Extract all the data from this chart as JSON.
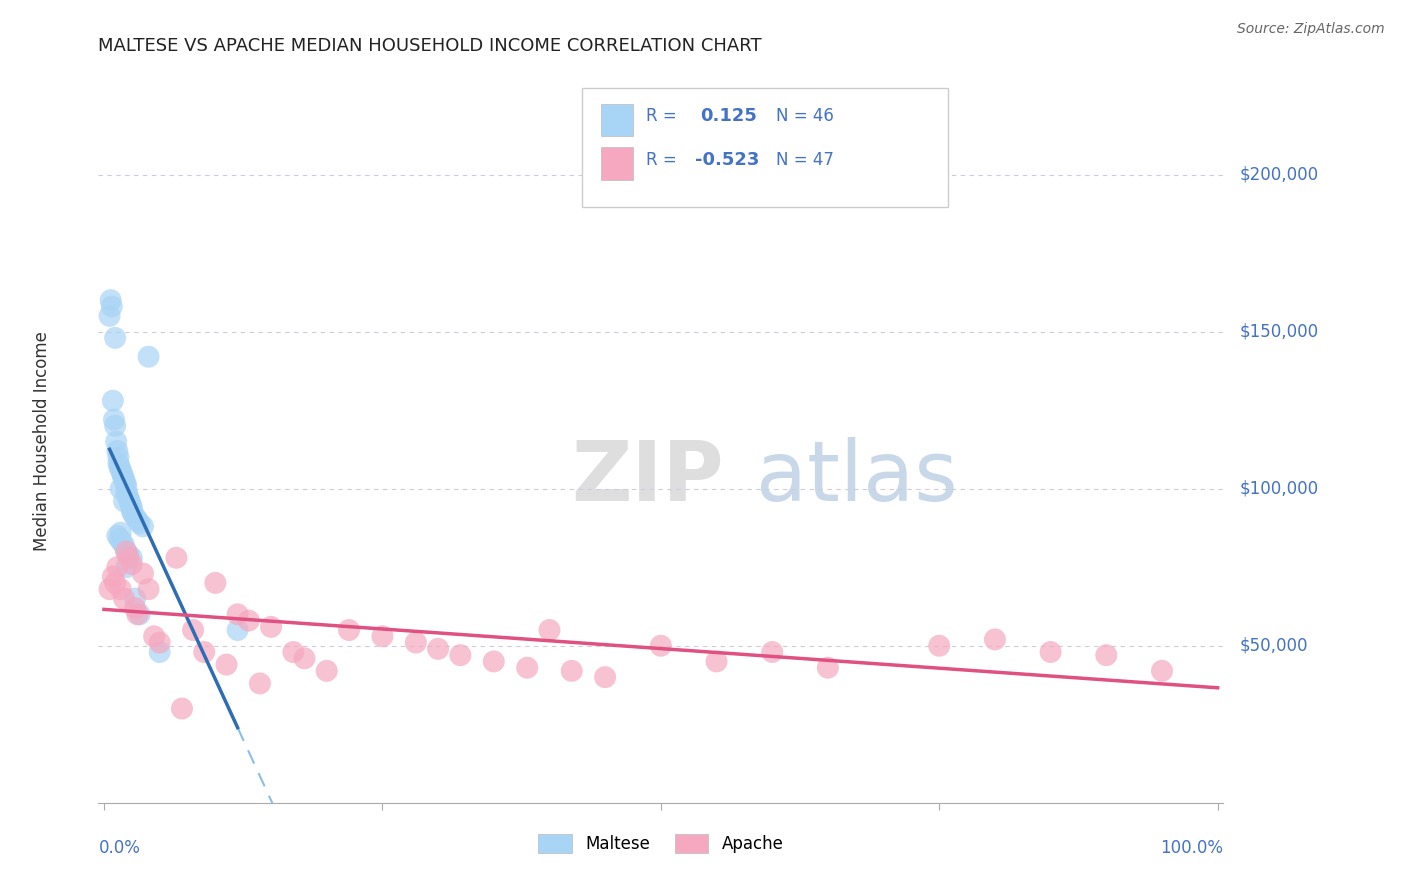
{
  "title": "MALTESE VS APACHE MEDIAN HOUSEHOLD INCOME CORRELATION CHART",
  "source": "Source: ZipAtlas.com",
  "ylabel": "Median Household Income",
  "R1": 0.125,
  "N1": 46,
  "R2": -0.523,
  "N2": 47,
  "color_blue_scatter": "#A8D4F5",
  "color_pink_scatter": "#F5A8C0",
  "color_blue_line": "#2E6DB4",
  "color_pink_line": "#E05080",
  "color_blue_dashed": "#A8D4F5",
  "color_labels": "#4472C4",
  "ytick_values": [
    50000,
    100000,
    150000,
    200000
  ],
  "ylim_min": 0,
  "ylim_max": 230000,
  "xlim_min": -0.005,
  "xlim_max": 1.005,
  "maltese_x": [
    0.005,
    0.006,
    0.007,
    0.008,
    0.009,
    0.01,
    0.01,
    0.011,
    0.012,
    0.013,
    0.013,
    0.014,
    0.015,
    0.015,
    0.016,
    0.017,
    0.018,
    0.018,
    0.019,
    0.02,
    0.02,
    0.021,
    0.022,
    0.023,
    0.024,
    0.025,
    0.025,
    0.026,
    0.028,
    0.03,
    0.032,
    0.035,
    0.04,
    0.012,
    0.014,
    0.016,
    0.018,
    0.02,
    0.022,
    0.025,
    0.028,
    0.032,
    0.12,
    0.05,
    0.015,
    0.02
  ],
  "maltese_y": [
    155000,
    160000,
    158000,
    128000,
    122000,
    120000,
    148000,
    115000,
    112000,
    110000,
    108000,
    107000,
    106000,
    100000,
    105000,
    104000,
    103000,
    96000,
    102000,
    101000,
    99000,
    98000,
    97000,
    96000,
    95000,
    94000,
    93000,
    92000,
    91000,
    90000,
    89000,
    88000,
    142000,
    85000,
    84000,
    83000,
    82000,
    80000,
    79000,
    78000,
    65000,
    60000,
    55000,
    48000,
    86000,
    75000
  ],
  "apache_x": [
    0.005,
    0.008,
    0.01,
    0.012,
    0.015,
    0.018,
    0.02,
    0.022,
    0.025,
    0.028,
    0.03,
    0.035,
    0.04,
    0.045,
    0.05,
    0.065,
    0.08,
    0.09,
    0.1,
    0.11,
    0.12,
    0.13,
    0.14,
    0.15,
    0.17,
    0.18,
    0.2,
    0.22,
    0.25,
    0.28,
    0.3,
    0.32,
    0.35,
    0.38,
    0.4,
    0.42,
    0.45,
    0.5,
    0.55,
    0.6,
    0.65,
    0.75,
    0.8,
    0.85,
    0.9,
    0.95,
    0.07
  ],
  "apache_y": [
    68000,
    72000,
    70000,
    75000,
    68000,
    65000,
    80000,
    78000,
    76000,
    62000,
    60000,
    73000,
    68000,
    53000,
    51000,
    78000,
    55000,
    48000,
    70000,
    44000,
    60000,
    58000,
    38000,
    56000,
    48000,
    46000,
    42000,
    55000,
    53000,
    51000,
    49000,
    47000,
    45000,
    43000,
    55000,
    42000,
    40000,
    50000,
    45000,
    48000,
    43000,
    50000,
    52000,
    48000,
    47000,
    42000,
    30000
  ]
}
